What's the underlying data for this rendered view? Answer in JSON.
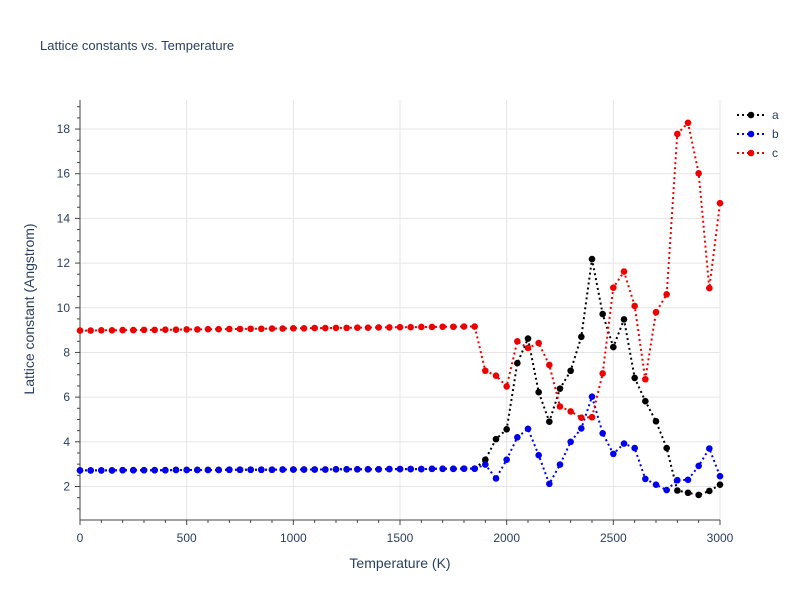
{
  "chart_data": {
    "type": "line",
    "title": "Lattice constants vs. Temperature",
    "xlabel": "Temperature (K)",
    "ylabel": "Lattice constant (Angstrom)",
    "xlim": [
      0,
      3000
    ],
    "ylim": [
      0.5,
      19.3
    ],
    "xticks": [
      0,
      500,
      1000,
      1500,
      2000,
      2500,
      3000
    ],
    "yticks": [
      2,
      4,
      6,
      8,
      10,
      12,
      14,
      16,
      18
    ],
    "grid": true,
    "legend_position": "top-right",
    "x": [
      0,
      50,
      100,
      150,
      200,
      250,
      300,
      350,
      400,
      450,
      500,
      550,
      600,
      650,
      700,
      750,
      800,
      850,
      900,
      950,
      1000,
      1050,
      1100,
      1150,
      1200,
      1250,
      1300,
      1350,
      1400,
      1450,
      1500,
      1550,
      1600,
      1650,
      1700,
      1750,
      1800,
      1850,
      1900,
      1950,
      2000,
      2050,
      2100,
      2150,
      2200,
      2250,
      2300,
      2350,
      2400,
      2450,
      2500,
      2550,
      2600,
      2650,
      2700,
      2750,
      2800,
      2850,
      2900,
      2950,
      3000
    ],
    "series": [
      {
        "name": "a",
        "color": "#000000",
        "values": [
          2.72,
          2.72,
          2.72,
          2.72,
          2.73,
          2.73,
          2.73,
          2.73,
          2.73,
          2.74,
          2.74,
          2.74,
          2.74,
          2.74,
          2.75,
          2.75,
          2.75,
          2.75,
          2.75,
          2.76,
          2.76,
          2.76,
          2.76,
          2.76,
          2.77,
          2.77,
          2.77,
          2.77,
          2.77,
          2.78,
          2.78,
          2.78,
          2.78,
          2.79,
          2.79,
          2.79,
          2.8,
          2.8,
          3.2,
          4.12,
          4.56,
          7.52,
          8.62,
          6.22,
          4.9,
          6.38,
          7.18,
          8.7,
          12.18,
          9.72,
          8.24,
          9.48,
          6.86,
          5.82,
          4.92,
          3.72,
          1.82,
          1.72,
          1.62,
          1.8,
          2.08
        ]
      },
      {
        "name": "b",
        "color": "#0000ee",
        "values": [
          2.72,
          2.72,
          2.72,
          2.72,
          2.73,
          2.73,
          2.73,
          2.73,
          2.73,
          2.74,
          2.74,
          2.74,
          2.74,
          2.74,
          2.75,
          2.75,
          2.75,
          2.75,
          2.75,
          2.76,
          2.76,
          2.76,
          2.76,
          2.76,
          2.77,
          2.77,
          2.77,
          2.77,
          2.77,
          2.78,
          2.78,
          2.78,
          2.78,
          2.79,
          2.79,
          2.79,
          2.8,
          2.8,
          2.98,
          2.36,
          3.2,
          4.2,
          4.58,
          3.4,
          2.12,
          2.98,
          4.0,
          4.6,
          6.02,
          4.38,
          3.46,
          3.92,
          3.72,
          2.34,
          2.08,
          1.84,
          2.28,
          2.3,
          2.92,
          3.7,
          2.46
        ]
      },
      {
        "name": "c",
        "color": "#ee0000",
        "values": [
          8.98,
          8.98,
          8.99,
          8.99,
          9.0,
          9.0,
          9.01,
          9.01,
          9.02,
          9.02,
          9.03,
          9.03,
          9.04,
          9.04,
          9.05,
          9.05,
          9.06,
          9.06,
          9.07,
          9.07,
          9.08,
          9.08,
          9.09,
          9.09,
          9.1,
          9.1,
          9.11,
          9.11,
          9.12,
          9.12,
          9.13,
          9.13,
          9.14,
          9.14,
          9.15,
          9.15,
          9.16,
          9.16,
          7.18,
          6.96,
          6.48,
          8.5,
          8.2,
          8.42,
          7.44,
          5.58,
          5.36,
          5.08,
          5.1,
          7.06,
          10.9,
          11.62,
          10.08,
          6.8,
          9.8,
          10.6,
          17.78,
          18.28,
          16.02,
          10.88,
          14.68
        ]
      }
    ]
  }
}
